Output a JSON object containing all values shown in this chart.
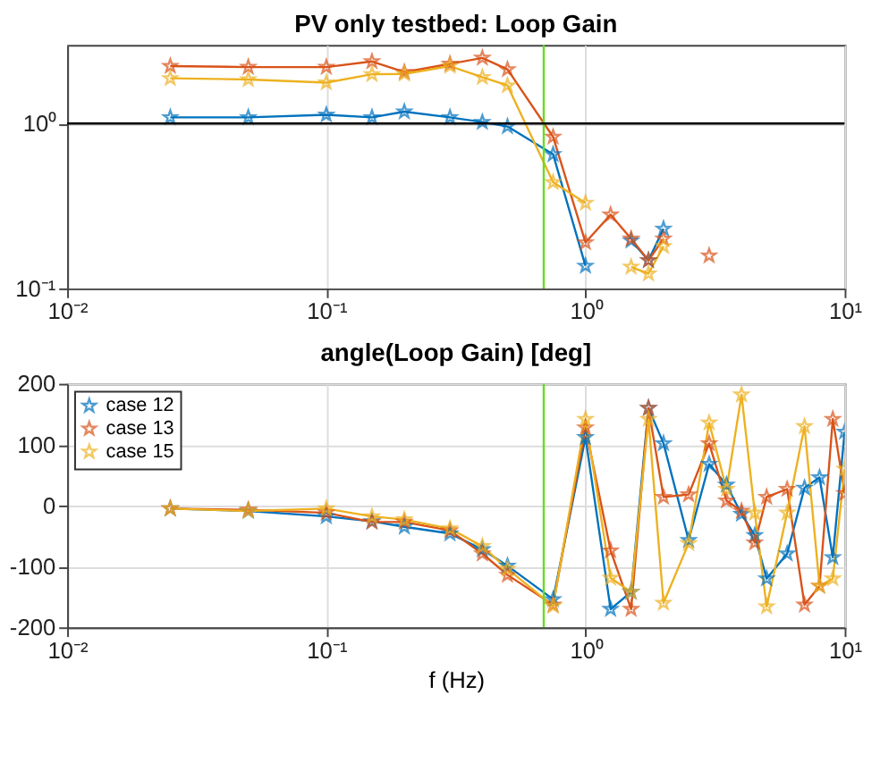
{
  "chart_data": [
    {
      "type": "line",
      "title": "PV only testbed: Loop Gain",
      "log": "xy",
      "grid": true,
      "legend": false,
      "marker": "star",
      "line_style": "solid",
      "x": [
        0.025,
        0.05,
        0.1,
        0.15,
        0.2,
        0.3,
        0.4,
        0.5,
        0.75,
        1.0,
        1.25,
        1.5,
        1.75,
        2,
        2.5,
        3
      ],
      "xlim": [
        0.01,
        10
      ],
      "xticks": [
        {
          "value": 0.01,
          "label": "10⁻²"
        },
        {
          "value": 0.1,
          "label": "10⁻¹"
        },
        {
          "value": 1,
          "label": "10⁰"
        },
        {
          "value": 10,
          "label": "10¹"
        }
      ],
      "ylim": [
        0.1,
        3
      ],
      "yticks": [
        {
          "value": 0.1,
          "label": "10⁻¹"
        },
        {
          "value": 1,
          "label": "10⁰"
        }
      ],
      "series": [
        {
          "color": "#0072bd",
          "values": [
            1.09,
            1.09,
            1.13,
            1.09,
            1.18,
            1.09,
            1.02,
            0.96,
            0.65,
            0.137,
            null,
            0.195,
            0.148,
            0.23,
            null,
            null
          ]
        },
        {
          "color": "#d95319",
          "values": [
            2.23,
            2.2,
            2.2,
            2.38,
            2.05,
            2.3,
            2.5,
            2.13,
            0.83,
            0.19,
            0.28,
            0.2,
            0.148,
            0.2,
            null,
            0.158
          ]
        },
        {
          "color": "#edb120",
          "values": [
            1.88,
            1.85,
            1.77,
            1.99,
            2.0,
            2.23,
            1.91,
            1.7,
            0.44,
            0.33,
            null,
            0.135,
            0.123,
            0.18,
            null,
            null
          ]
        }
      ],
      "ref_lines": [
        {
          "axis": "x",
          "value": 0.69,
          "color": "#66dd22"
        },
        {
          "axis": "y",
          "value": 1,
          "color": "#000000"
        }
      ]
    },
    {
      "type": "line",
      "title": "angle(Loop Gain) [deg]",
      "xlabel": "f (Hz)",
      "log": "x",
      "grid": true,
      "legend": "top left",
      "marker": "star",
      "line_style": "solid",
      "x": [
        0.025,
        0.05,
        0.1,
        0.15,
        0.2,
        0.3,
        0.4,
        0.5,
        0.75,
        1.0,
        1.25,
        1.5,
        1.75,
        2,
        2.5,
        3,
        3.5,
        4,
        4.5,
        5,
        6,
        7,
        8,
        9,
        10
      ],
      "xlim": [
        0.01,
        10
      ],
      "xticks": [
        {
          "value": 0.01,
          "label": "10⁻²"
        },
        {
          "value": 0.1,
          "label": "10⁻¹"
        },
        {
          "value": 1,
          "label": "10⁰"
        },
        {
          "value": 10,
          "label": "10¹"
        }
      ],
      "ylim": [
        -200,
        200
      ],
      "yticks": [
        -200,
        -100,
        0,
        100,
        200
      ],
      "series": [
        {
          "name": "case 12",
          "color": "#0072bd",
          "values": [
            -5,
            -9,
            -18,
            -26,
            -35,
            -46,
            -72,
            -99,
            -154,
            112,
            -170,
            -142,
            160,
            102,
            -57,
            68,
            34,
            -14,
            -49,
            -120,
            -79,
            29,
            46,
            -85,
            121
          ]
        },
        {
          "name": "case 13",
          "color": "#d95319",
          "values": [
            -5,
            -7,
            -12,
            -27,
            -27,
            -41,
            -79,
            -114,
            -163,
            128,
            -74,
            -170,
            160,
            14,
            18,
            102,
            8,
            -9,
            -61,
            14,
            27,
            -163,
            -132,
            142,
            20
          ]
        },
        {
          "name": "case 15",
          "color": "#edb120",
          "values": [
            -5,
            -9,
            -5,
            -18,
            -23,
            -38,
            -67,
            -104,
            -165,
            142,
            -119,
            -142,
            142,
            -160,
            -62,
            136,
            27,
            182,
            -12,
            -166,
            -12,
            130,
            -132,
            -120,
            60
          ]
        }
      ],
      "ref_lines": [
        {
          "axis": "x",
          "value": 0.69,
          "color": "#66dd22"
        }
      ]
    }
  ]
}
